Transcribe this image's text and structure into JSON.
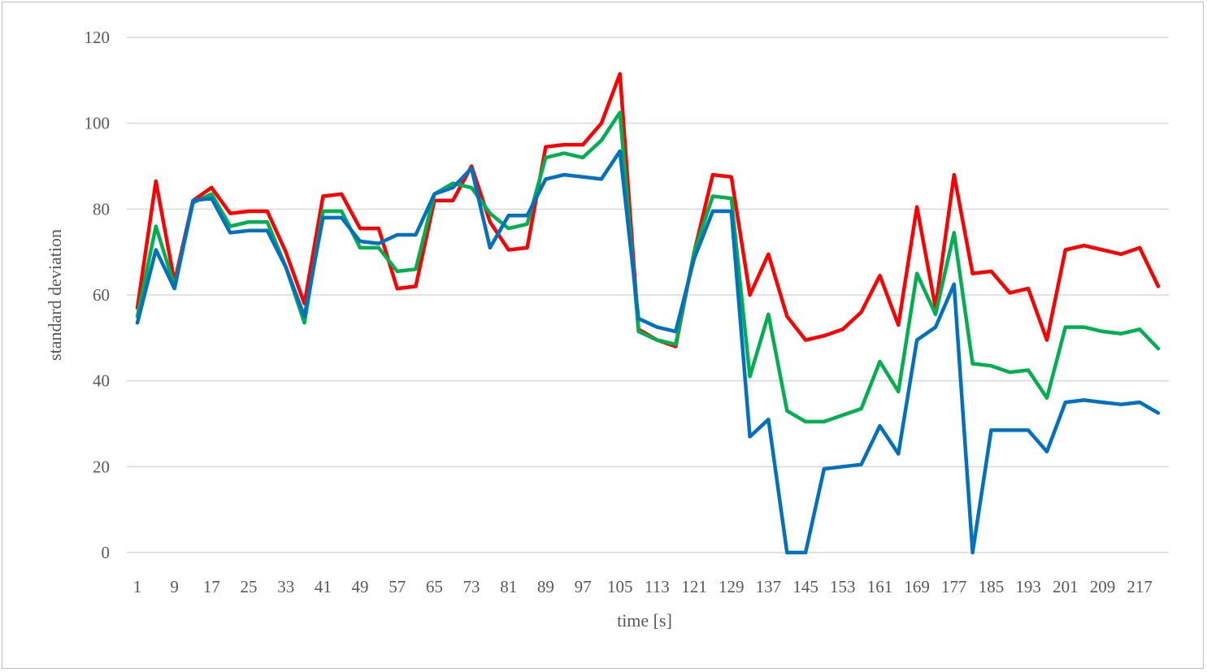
{
  "chart_data": {
    "type": "line",
    "title": "",
    "xlabel": "time [s]",
    "ylabel": "standard deviation",
    "ylim": [
      0,
      120
    ],
    "yticks": [
      0,
      20,
      40,
      60,
      80,
      100,
      120
    ],
    "grid": true,
    "legend": "none",
    "x": [
      1,
      5,
      9,
      13,
      17,
      21,
      25,
      29,
      33,
      37,
      41,
      45,
      49,
      53,
      57,
      61,
      65,
      69,
      73,
      77,
      81,
      85,
      89,
      93,
      97,
      101,
      105,
      109,
      113,
      117,
      121,
      125,
      129,
      133,
      137,
      141,
      145,
      149,
      153,
      157,
      161,
      165,
      169,
      173,
      177,
      181,
      185,
      189,
      193,
      197,
      201,
      205,
      209,
      213,
      217,
      221
    ],
    "xticklabels": [
      "1",
      "9",
      "17",
      "25",
      "33",
      "41",
      "49",
      "57",
      "65",
      "73",
      "81",
      "89",
      "97",
      "105",
      "113",
      "121",
      "129",
      "137",
      "145",
      "153",
      "161",
      "169",
      "177",
      "185",
      "193",
      "201",
      "209",
      "217"
    ],
    "series": [
      {
        "color": "#ff0000",
        "values": [
          57,
          86.5,
          63,
          82,
          85,
          79,
          79.5,
          79.5,
          70,
          58,
          83,
          83.5,
          75.5,
          75.5,
          61.5,
          62,
          82,
          82,
          90,
          77,
          70.5,
          71,
          94.5,
          95,
          95,
          100,
          111.5,
          52,
          49.5,
          48,
          70,
          88,
          87.5,
          60,
          69.5,
          55,
          49.5,
          50.5,
          52,
          56,
          64.5,
          53,
          80.5,
          57,
          88,
          65,
          65.5,
          60.5,
          61.5,
          49.5,
          70.5,
          71.5,
          70.5,
          69.5,
          71,
          62
        ]
      },
      {
        "color": "#00b050",
        "values": [
          55,
          76,
          62,
          81.5,
          83.5,
          76,
          77,
          77,
          66.5,
          53.5,
          79.5,
          79.5,
          71,
          71,
          65.5,
          66,
          83.5,
          86,
          85,
          79,
          75.5,
          76.5,
          92,
          93,
          92,
          96,
          102.5,
          51.5,
          49.5,
          48.5,
          70,
          83,
          82.5,
          41,
          55.5,
          33,
          30.5,
          30.5,
          32,
          33.5,
          44.5,
          37.5,
          65,
          55.5,
          74.5,
          44,
          43.5,
          42,
          42.5,
          36,
          52.5,
          52.5,
          51.5,
          51,
          52,
          47.5
        ]
      },
      {
        "color": "#0070c0",
        "values": [
          53.5,
          70.5,
          61.5,
          82,
          82.5,
          74.5,
          75,
          75,
          66.5,
          55,
          78,
          78,
          72.5,
          72,
          74,
          74,
          83.5,
          85,
          89.5,
          71,
          78.5,
          78.5,
          87,
          88,
          87.5,
          87,
          93.5,
          54.5,
          52.5,
          51.5,
          68.5,
          79.5,
          79.5,
          27,
          31,
          0,
          0,
          19.5,
          20,
          20.5,
          29.5,
          23,
          49.5,
          52.5,
          62.5,
          0,
          28.5,
          28.5,
          28.5,
          23.5,
          35,
          35.5,
          35,
          34.5,
          35,
          32.5
        ]
      }
    ]
  }
}
